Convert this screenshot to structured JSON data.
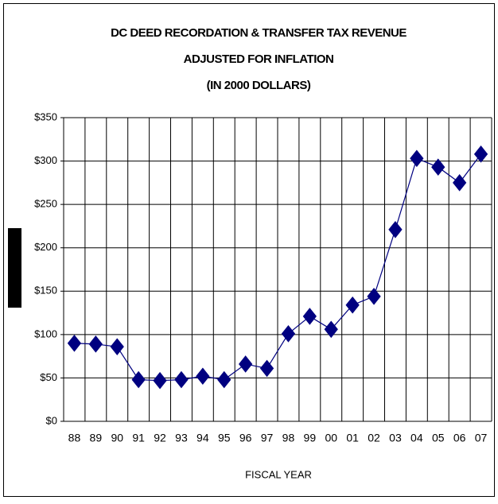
{
  "chart_data": {
    "type": "line",
    "title": [
      "DC DEED RECORDATION & TRANSFER TAX REVENUE",
      "ADJUSTED FOR INFLATION",
      "(IN 2000 DOLLARS)"
    ],
    "xlabel": "FISCAL YEAR",
    "categories": [
      "88",
      "89",
      "90",
      "91",
      "92",
      "93",
      "94",
      "95",
      "96",
      "97",
      "98",
      "99",
      "00",
      "01",
      "02",
      "03",
      "04",
      "05",
      "06",
      "07"
    ],
    "series": [
      {
        "color": "#000080",
        "values": [
          90,
          89,
          86,
          48,
          47,
          48,
          52,
          48,
          66,
          61,
          101,
          121,
          106,
          134,
          144,
          221,
          303,
          293,
          275,
          308
        ]
      }
    ],
    "ylim": [
      0,
      350
    ],
    "yticks": [
      {
        "value": 0,
        "label": "$0"
      },
      {
        "value": 50,
        "label": "$50"
      },
      {
        "value": 100,
        "label": "$100"
      },
      {
        "value": 150,
        "label": "$150"
      },
      {
        "value": 200,
        "label": "$200"
      },
      {
        "value": 250,
        "label": "$250"
      },
      {
        "value": 300,
        "label": "$300"
      },
      {
        "value": 350,
        "label": "$350"
      }
    ],
    "grid": true
  }
}
